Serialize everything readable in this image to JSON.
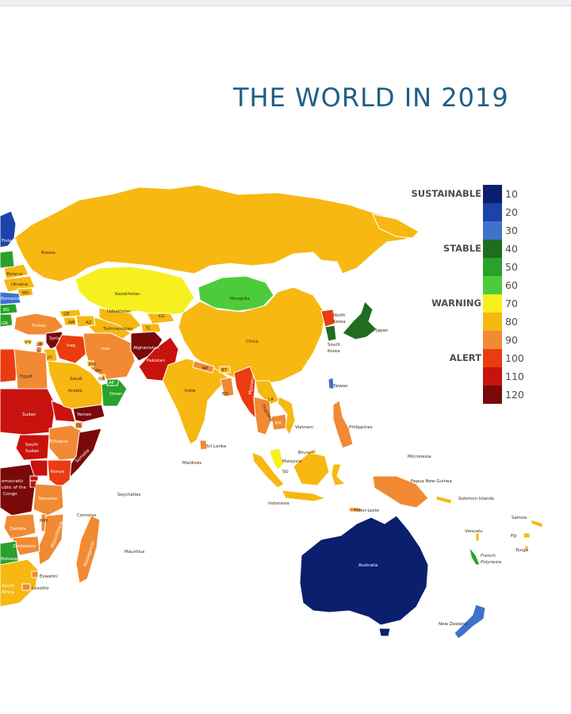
{
  "title": "THE WORLD IN 2019",
  "legend": {
    "categories": [
      {
        "name": "SUSTAINABLE",
        "value": "10"
      },
      {
        "name": "STABLE",
        "value": "40"
      },
      {
        "name": "WARNING",
        "value": "70"
      },
      {
        "name": "ALERT",
        "value": "100"
      }
    ],
    "scale": [
      {
        "value": "10",
        "color": "#0a1f6d"
      },
      {
        "value": "20",
        "color": "#1c44a8"
      },
      {
        "value": "30",
        "color": "#3f72cc"
      },
      {
        "value": "40",
        "color": "#1f6d1f"
      },
      {
        "value": "50",
        "color": "#2aa12a"
      },
      {
        "value": "60",
        "color": "#4ccc3a"
      },
      {
        "value": "70",
        "color": "#f7f01f"
      },
      {
        "value": "80",
        "color": "#f6b811"
      },
      {
        "value": "90",
        "color": "#f18a32"
      },
      {
        "value": "100",
        "color": "#ea3c10"
      },
      {
        "value": "110",
        "color": "#c8120d"
      },
      {
        "value": "120",
        "color": "#7a0a0a"
      }
    ]
  },
  "countries": {
    "russia": "Russia",
    "finland": "Finland",
    "belarus": "Belarus",
    "ukraine": "Ukraine",
    "moldova": "MD",
    "romania": "Romania",
    "kazakhstan": "Kazakhstan",
    "mongolia": "Mongolia",
    "uzbekistan": "Uzbekistan",
    "turkmenistan": "Turkmenistan",
    "kyrgyzstan": "KG",
    "tajikistan": "TJ",
    "georgia": "GE",
    "armenia": "AM",
    "azerbaijan": "AZ",
    "turkey": "Turkey",
    "cyprus": "CY",
    "lebanon": "LB",
    "israel": "IL",
    "jordan": "JO",
    "syria": "Syria",
    "iraq": "Iraq",
    "iran": "Iran",
    "afghanistan": "Afghanistan",
    "pakistan": "Pakistan",
    "kuwait": "KW",
    "bahrain": "BH",
    "qatar": "QA",
    "uae": "AE",
    "saudi": "Saudi",
    "arabia": "Arabia",
    "egypt": "Egypt",
    "oman": "Oman",
    "yemen": "Yemen",
    "djibouti": "DJ",
    "sudan": "Sudan",
    "south_sudan_1": "South",
    "south_sudan_2": "Sudan",
    "ethiopia": "Ethiopia",
    "somalia": "Somalia",
    "kenya": "Kenya",
    "rwanda": "RW",
    "burundi": "BI",
    "drc_1": "emocratic",
    "drc_2": "ublic of the",
    "drc_3": "Congo",
    "tanzania": "Tanzania",
    "zambia": "Zambia",
    "zimbabwe": "Zimbabwe",
    "mozambique": "Mozambique",
    "malawi": "MW",
    "botswana": "Botswana",
    "south_africa_1": "South",
    "south_africa_2": "Africa",
    "eswatini": "Eswatini",
    "lesotho": "Lesotho",
    "madagascar": "Madagascar",
    "comoros": "Comoros",
    "seychelles": "Seychelles",
    "mauritius": "Mauritius",
    "maldives": "Maldives",
    "sri_lanka": "Sri Lanka",
    "india": "India",
    "nepal": "NP",
    "bhutan": "BT",
    "bangladesh": "BD",
    "china": "China",
    "north_korea_1": "North",
    "north_korea_2": "Korea",
    "south_korea_1": "South",
    "south_korea_2": "Korea",
    "japan": "Japan",
    "taiwan": "Taiwan",
    "myanmar": "Myanmar",
    "laos": "LA",
    "thailand": "Thailand",
    "cambodia": "KH",
    "vietnam": "Vietnam",
    "philippines": "Philippines",
    "malaysia": "Malaysia",
    "brunei": "Brunei",
    "singapore": "SG",
    "indonesia": "Indonesia",
    "timor": "Timor-Leste",
    "png": "Papua New Guinea",
    "micronesia": "Micronesia",
    "solomon": "Solomon Islands",
    "vanuatu": "Vanuatu",
    "fiji": "Fiji",
    "samoa": "Samoa",
    "tonga": "Tonga",
    "french_polynesia_1": "French",
    "french_polynesia_2": "Polynesia",
    "australia": "Australia",
    "new_zealand": "New Zealand",
    "edge_r": "R.",
    "edge_gr": "GR",
    "edge_bg": "BG"
  }
}
